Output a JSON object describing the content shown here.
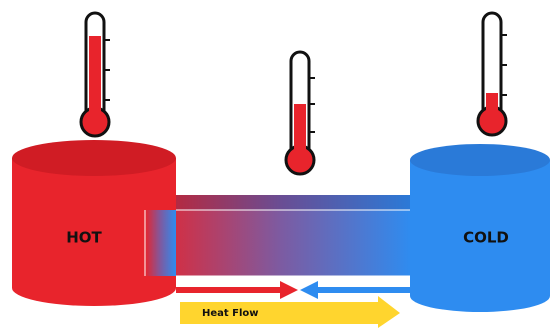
{
  "labels": {
    "hot": "HOT",
    "cold": "COLD",
    "heat_flow": "Heat Flow"
  }
}
